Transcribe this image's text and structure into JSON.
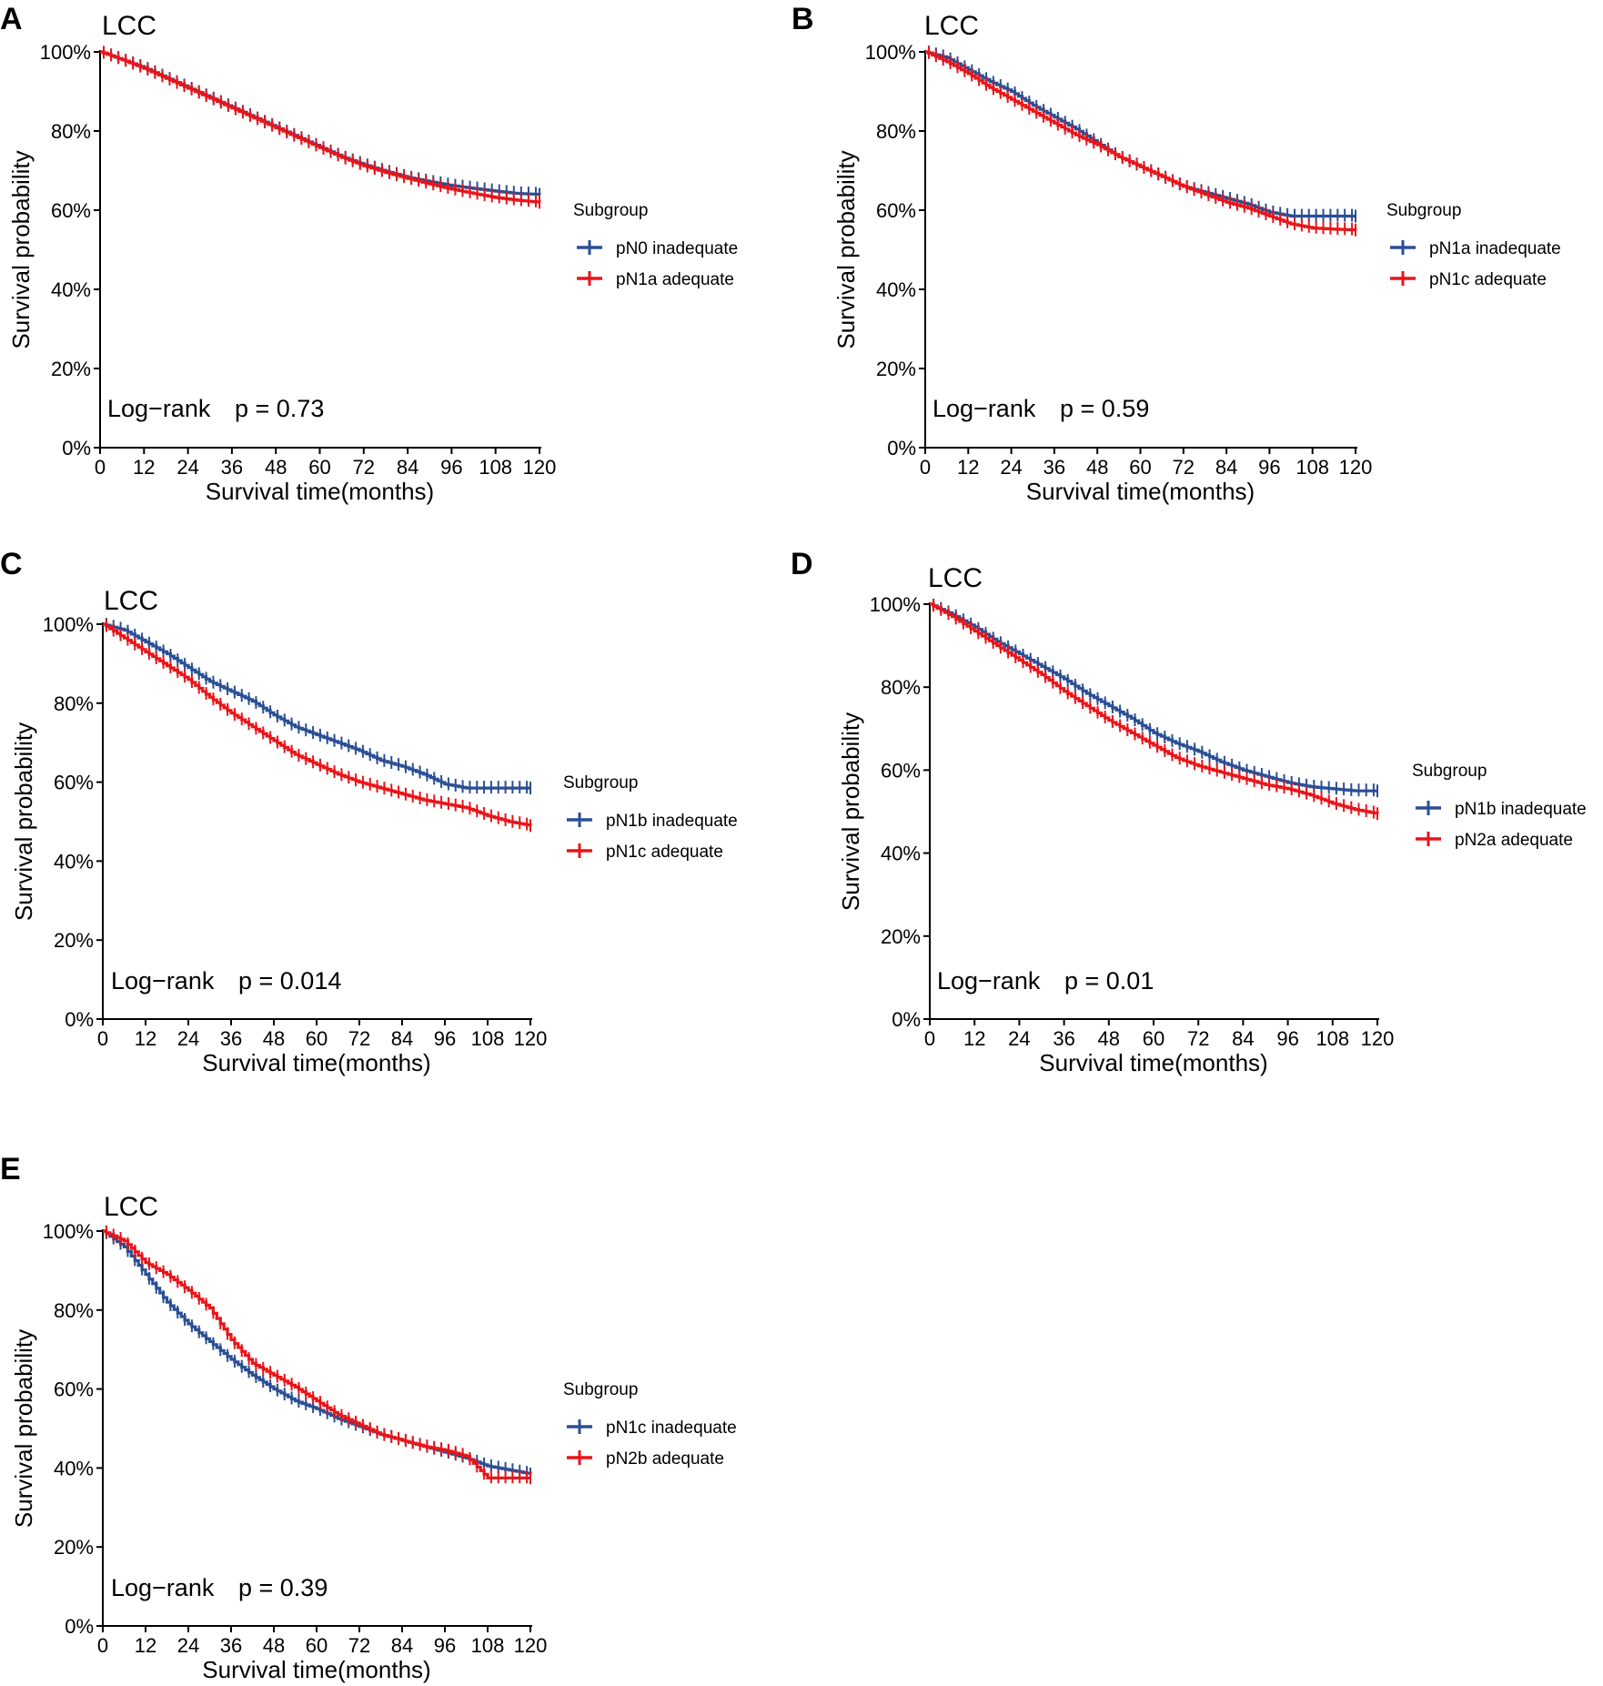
{
  "colors": {
    "inadequate": "#2b4f93",
    "adequate": "#e8151a",
    "axis": "#000000"
  },
  "chart_data": [
    {
      "panel": "A",
      "type": "line",
      "title": "LCC",
      "xlabel": "Survival time(months)",
      "ylabel": "Survival probability",
      "xlim": [
        0,
        120
      ],
      "ylim": [
        0,
        100
      ],
      "xticks": [
        "0",
        "12",
        "24",
        "36",
        "48",
        "60",
        "72",
        "84",
        "96",
        "108",
        "120"
      ],
      "yticks": [
        "0%",
        "20%",
        "40%",
        "60%",
        "80%",
        "100%"
      ],
      "legend_title": "Subgroup",
      "logrank_label": "Log−rank",
      "pvalue": "p = 0.73",
      "series": [
        {
          "name": "pN0 inadequate",
          "color": "#2b4f93",
          "x": [
            0,
            6,
            12,
            18,
            24,
            30,
            36,
            42,
            48,
            54,
            60,
            66,
            72,
            78,
            84,
            90,
            96,
            102,
            108,
            114,
            120
          ],
          "y": [
            100,
            98,
            96,
            93.5,
            91,
            88.5,
            86,
            83.5,
            81,
            78.5,
            76,
            73.5,
            71.5,
            69.8,
            68.3,
            67.2,
            66.2,
            65.5,
            64.8,
            64.2,
            64
          ]
        },
        {
          "name": "pN1a adequate",
          "color": "#e8151a",
          "x": [
            0,
            6,
            12,
            18,
            24,
            30,
            36,
            42,
            48,
            54,
            60,
            66,
            72,
            78,
            84,
            90,
            96,
            102,
            108,
            114,
            120
          ],
          "y": [
            100,
            98,
            95.8,
            93.3,
            90.8,
            88.3,
            85.8,
            83.3,
            80.8,
            78.3,
            75.8,
            73.3,
            71.2,
            69.5,
            68,
            66.6,
            65.3,
            64.2,
            63.2,
            62.5,
            62
          ]
        }
      ]
    },
    {
      "panel": "B",
      "type": "line",
      "title": "LCC",
      "xlabel": "Survival time(months)",
      "ylabel": "Survival probability",
      "xlim": [
        0,
        120
      ],
      "ylim": [
        0,
        100
      ],
      "xticks": [
        "0",
        "12",
        "24",
        "36",
        "48",
        "60",
        "72",
        "84",
        "96",
        "108",
        "120"
      ],
      "yticks": [
        "0%",
        "20%",
        "40%",
        "60%",
        "80%",
        "100%"
      ],
      "legend_title": "Subgroup",
      "logrank_label": "Log−rank",
      "pvalue": "p = 0.59",
      "series": [
        {
          "name": "pN1a inadequate",
          "color": "#2b4f93",
          "x": [
            0,
            6,
            12,
            18,
            24,
            30,
            36,
            42,
            48,
            54,
            60,
            66,
            72,
            78,
            84,
            90,
            96,
            102,
            108,
            114,
            120
          ],
          "y": [
            100,
            98.5,
            95.5,
            92.5,
            90,
            86.5,
            83.5,
            80.5,
            77,
            73.5,
            71,
            68.5,
            66,
            64.5,
            63,
            61.5,
            59.5,
            58.5,
            58.5,
            58.5,
            58.5
          ]
        },
        {
          "name": "pN1c adequate",
          "color": "#e8151a",
          "x": [
            0,
            6,
            12,
            18,
            24,
            30,
            36,
            42,
            48,
            54,
            60,
            66,
            72,
            78,
            84,
            90,
            96,
            102,
            108,
            114,
            120
          ],
          "y": [
            100,
            97.5,
            94.5,
            91,
            88,
            85,
            82,
            79,
            76.5,
            73.5,
            71,
            68.5,
            66,
            64,
            62,
            60.5,
            58.5,
            56.5,
            55.5,
            55.2,
            55
          ]
        }
      ]
    },
    {
      "panel": "C",
      "type": "line",
      "title": "LCC",
      "xlabel": "Survival time(months)",
      "ylabel": "Survival probability",
      "xlim": [
        0,
        120
      ],
      "ylim": [
        0,
        100
      ],
      "xticks": [
        "0",
        "12",
        "24",
        "36",
        "48",
        "60",
        "72",
        "84",
        "96",
        "108",
        "120"
      ],
      "yticks": [
        "0%",
        "20%",
        "40%",
        "60%",
        "80%",
        "100%"
      ],
      "legend_title": "Subgroup",
      "logrank_label": "Log−rank",
      "pvalue": "p = 0.014",
      "series": [
        {
          "name": "pN1b inadequate",
          "color": "#2b4f93",
          "x": [
            0,
            6,
            12,
            18,
            24,
            30,
            36,
            42,
            48,
            54,
            60,
            66,
            72,
            78,
            84,
            90,
            96,
            102,
            108,
            114,
            120
          ],
          "y": [
            100,
            98.5,
            95.5,
            92.5,
            89,
            85.5,
            83,
            80.5,
            77,
            74,
            72,
            70,
            68,
            65.5,
            64,
            62,
            59.5,
            58.5,
            58.5,
            58.5,
            58.5
          ]
        },
        {
          "name": "pN1c adequate",
          "color": "#e8151a",
          "x": [
            0,
            6,
            12,
            18,
            24,
            30,
            36,
            42,
            48,
            54,
            60,
            66,
            72,
            78,
            84,
            90,
            96,
            102,
            108,
            114,
            120
          ],
          "y": [
            100,
            96.5,
            93,
            89.5,
            86,
            81.5,
            77.5,
            74,
            70.5,
            67,
            64.5,
            62,
            60,
            58.5,
            57,
            55.5,
            54.5,
            53.5,
            51.5,
            50,
            49
          ]
        }
      ]
    },
    {
      "panel": "D",
      "type": "line",
      "title": "LCC",
      "xlabel": "Survival time(months)",
      "ylabel": "Survival probability",
      "xlim": [
        0,
        120
      ],
      "ylim": [
        0,
        100
      ],
      "xticks": [
        "0",
        "12",
        "24",
        "36",
        "48",
        "60",
        "72",
        "84",
        "96",
        "108",
        "120"
      ],
      "yticks": [
        "0%",
        "20%",
        "40%",
        "60%",
        "80%",
        "100%"
      ],
      "legend_title": "Subgroup",
      "logrank_label": "Log−rank",
      "pvalue": "p = 0.01",
      "series": [
        {
          "name": "pN1b inadequate",
          "color": "#2b4f93",
          "x": [
            0,
            6,
            12,
            18,
            24,
            30,
            36,
            42,
            48,
            54,
            60,
            66,
            72,
            78,
            84,
            90,
            96,
            102,
            108,
            114,
            120
          ],
          "y": [
            100,
            97.5,
            94.5,
            91,
            88,
            85,
            82,
            78.5,
            75.5,
            72.5,
            69,
            66.5,
            64.5,
            62,
            60,
            58.5,
            57,
            56,
            55.5,
            55,
            55
          ]
        },
        {
          "name": "pN2a adequate",
          "color": "#e8151a",
          "x": [
            0,
            6,
            12,
            18,
            24,
            30,
            36,
            42,
            48,
            54,
            60,
            66,
            72,
            78,
            84,
            90,
            96,
            102,
            108,
            114,
            120
          ],
          "y": [
            100,
            97,
            93.5,
            90,
            86.5,
            83,
            79,
            75.5,
            72,
            69,
            66,
            63,
            61,
            59.5,
            58,
            56.5,
            55.5,
            54,
            52,
            50.5,
            49.5
          ]
        }
      ]
    },
    {
      "panel": "E",
      "type": "line",
      "title": "LCC",
      "xlabel": "Survival time(months)",
      "ylabel": "Survival probability",
      "xlim": [
        0,
        120
      ],
      "ylim": [
        0,
        100
      ],
      "xticks": [
        "0",
        "12",
        "24",
        "36",
        "48",
        "60",
        "72",
        "84",
        "96",
        "108",
        "120"
      ],
      "yticks": [
        "0%",
        "20%",
        "40%",
        "60%",
        "80%",
        "100%"
      ],
      "legend_title": "Subgroup",
      "logrank_label": "Log−rank",
      "pvalue": "p = 0.39",
      "series": [
        {
          "name": "pN1c inadequate",
          "color": "#2b4f93",
          "x": [
            0,
            6,
            12,
            18,
            24,
            30,
            36,
            42,
            48,
            54,
            60,
            66,
            72,
            78,
            84,
            90,
            96,
            102,
            108,
            114,
            120
          ],
          "y": [
            100,
            96,
            89,
            82,
            76.5,
            72,
            67.5,
            63.5,
            60,
            57,
            55,
            52.5,
            50.5,
            48.5,
            47,
            45.5,
            44,
            42.5,
            40.5,
            39.5,
            38.5
          ]
        },
        {
          "name": "pN2b adequate",
          "color": "#e8151a",
          "x": [
            0,
            6,
            12,
            18,
            24,
            30,
            36,
            42,
            48,
            54,
            60,
            66,
            72,
            78,
            84,
            90,
            96,
            102,
            108,
            114,
            120
          ],
          "y": [
            100,
            97.5,
            92,
            89,
            85,
            80.5,
            72.5,
            66.5,
            63.5,
            60.5,
            57,
            53.5,
            51,
            48.5,
            47,
            45.5,
            44.5,
            43,
            37.5,
            37.5,
            37.5
          ]
        }
      ]
    }
  ]
}
